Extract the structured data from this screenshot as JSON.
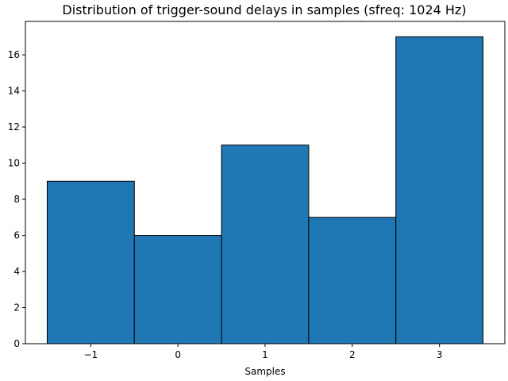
{
  "chart_data": {
    "type": "bar",
    "title": "Distribution of trigger-sound delays in samples (sfreq: 1024 Hz)",
    "xlabel": "Samples",
    "ylabel": "",
    "bins": [
      {
        "center": -1,
        "label": "−1",
        "value": 9
      },
      {
        "center": 0,
        "label": "0",
        "value": 6
      },
      {
        "center": 1,
        "label": "1",
        "value": 11
      },
      {
        "center": 2,
        "label": "2",
        "value": 7
      },
      {
        "center": 3,
        "label": "3",
        "value": 17
      }
    ],
    "bin_width": 1,
    "xlim": [
      -1.75,
      3.75
    ],
    "ylim": [
      0,
      17.85
    ],
    "yticks": [
      0,
      2,
      4,
      6,
      8,
      10,
      12,
      14,
      16
    ],
    "grid": false,
    "legend": "none",
    "bar_color": "#1f77b4",
    "edge_color": "#000000"
  }
}
